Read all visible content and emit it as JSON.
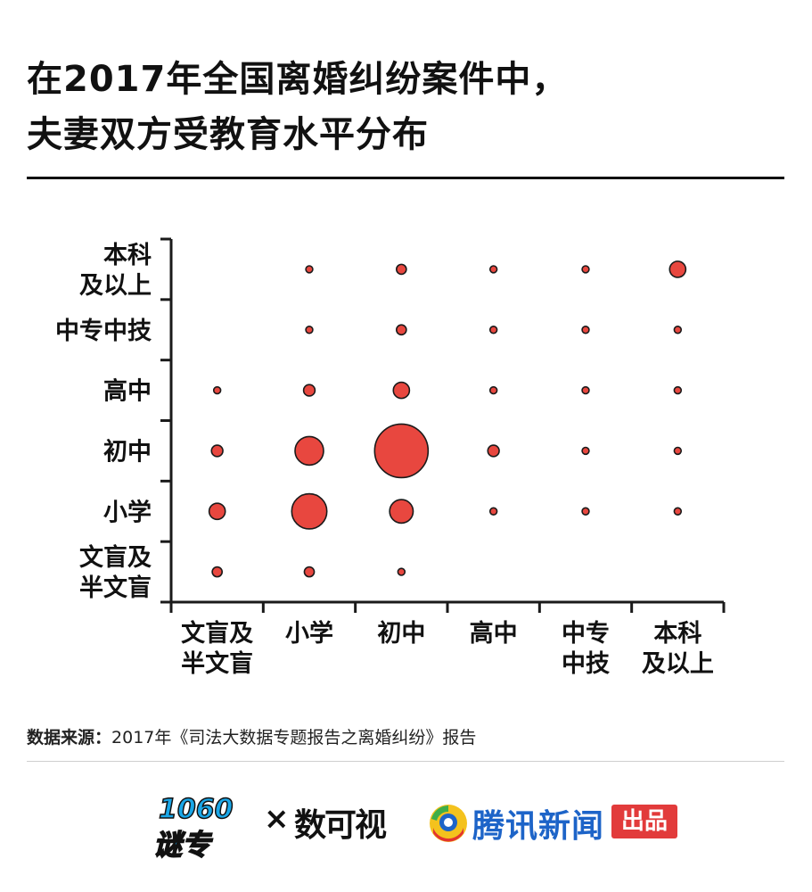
{
  "title": {
    "line1": "在2017年全国离婚纠纷案件中，",
    "line2": "夫妻双方受教育水平分布"
  },
  "source": {
    "label": "数据来源：",
    "text": "2017年《司法大数据专题报告之离婚纠纷》报告"
  },
  "footer": {
    "logo1": "1060谜专",
    "times": "×",
    "logo2": "数可视",
    "tencent_text": "腾讯新闻",
    "tencent_badge": "出品"
  },
  "watermark_text": "腾讯新闻",
  "colors": {
    "bubble_fill": "#e8473f",
    "bubble_stroke": "#1a1a1a",
    "axis": "#1a1a1a",
    "tencent_blue": "#1d64c8",
    "badge_red": "#e23b3b"
  },
  "chart_data": {
    "type": "scatter",
    "x_categories": [
      "文盲及半文盲",
      "小学",
      "初中",
      "高中",
      "中专中技",
      "本科及以上"
    ],
    "x_labels": [
      [
        "文盲及",
        "半文盲"
      ],
      [
        "小学"
      ],
      [
        "初中"
      ],
      [
        "高中"
      ],
      [
        "中专",
        "中技"
      ],
      [
        "本科",
        "及以上"
      ]
    ],
    "y_categories": [
      "文盲及半文盲",
      "小学",
      "初中",
      "高中",
      "中专中技",
      "本科及以上"
    ],
    "y_labels": [
      [
        "文盲及",
        "半文盲"
      ],
      [
        "小学"
      ],
      [
        "初中"
      ],
      [
        "高中"
      ],
      [
        "中专中技"
      ],
      [
        "本科",
        "及以上"
      ]
    ],
    "bubbles": [
      {
        "x": 0,
        "y": 0,
        "size": 3
      },
      {
        "x": 1,
        "y": 0,
        "size": 3
      },
      {
        "x": 2,
        "y": 0,
        "size": 1.5
      },
      {
        "x": 0,
        "y": 1,
        "size": 8
      },
      {
        "x": 1,
        "y": 1,
        "size": 38
      },
      {
        "x": 2,
        "y": 1,
        "size": 17
      },
      {
        "x": 3,
        "y": 1,
        "size": 1.5
      },
      {
        "x": 4,
        "y": 1,
        "size": 1.5
      },
      {
        "x": 5,
        "y": 1,
        "size": 1.5
      },
      {
        "x": 0,
        "y": 2,
        "size": 4
      },
      {
        "x": 1,
        "y": 2,
        "size": 25
      },
      {
        "x": 2,
        "y": 2,
        "size": 88
      },
      {
        "x": 3,
        "y": 2,
        "size": 4
      },
      {
        "x": 4,
        "y": 2,
        "size": 1.5
      },
      {
        "x": 5,
        "y": 2,
        "size": 1.5
      },
      {
        "x": 0,
        "y": 3,
        "size": 1.5
      },
      {
        "x": 1,
        "y": 3,
        "size": 4
      },
      {
        "x": 2,
        "y": 3,
        "size": 8
      },
      {
        "x": 3,
        "y": 3,
        "size": 1.5
      },
      {
        "x": 4,
        "y": 3,
        "size": 1.5
      },
      {
        "x": 5,
        "y": 3,
        "size": 1.5
      },
      {
        "x": 1,
        "y": 4,
        "size": 1.5
      },
      {
        "x": 2,
        "y": 4,
        "size": 3
      },
      {
        "x": 3,
        "y": 4,
        "size": 1.5
      },
      {
        "x": 4,
        "y": 4,
        "size": 1.5
      },
      {
        "x": 5,
        "y": 4,
        "size": 1.5
      },
      {
        "x": 1,
        "y": 5,
        "size": 1.5
      },
      {
        "x": 2,
        "y": 5,
        "size": 3
      },
      {
        "x": 3,
        "y": 5,
        "size": 1.5
      },
      {
        "x": 4,
        "y": 5,
        "size": 1.5
      },
      {
        "x": 5,
        "y": 5,
        "size": 8
      }
    ],
    "grid": false
  }
}
